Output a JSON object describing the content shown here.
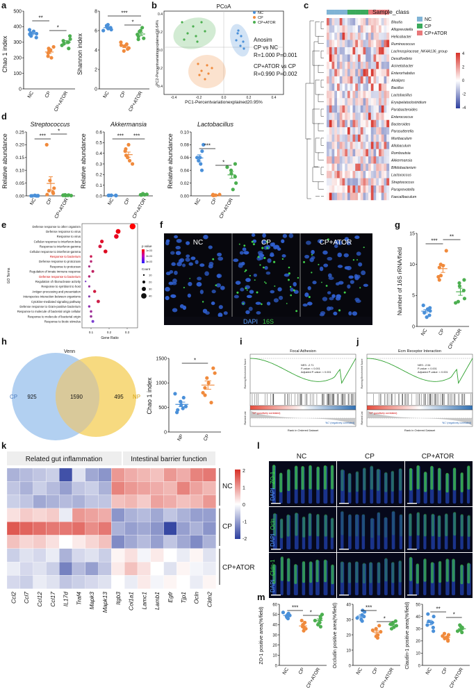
{
  "panel_letters": [
    "a",
    "b",
    "c",
    "d",
    "e",
    "f",
    "g",
    "h",
    "i",
    "j",
    "k",
    "l",
    "m"
  ],
  "groups": [
    "NC",
    "CP",
    "CP+ATOR"
  ],
  "colors": {
    "NC": "#4a90d9",
    "CP": "#f08a3c",
    "CPATOR": "#4caf50"
  },
  "a": {
    "chao1": {
      "ylabel": "Chao 1 index",
      "ticks": [
        "0",
        "100",
        "200",
        "300",
        "400",
        "500"
      ],
      "sig": [
        "**",
        "*"
      ]
    },
    "shannon": {
      "ylabel": "Shannon index",
      "ticks": [
        "0",
        "2",
        "4",
        "6",
        "8"
      ],
      "sig": [
        "***",
        "*"
      ]
    }
  },
  "b": {
    "title": "PCoA",
    "xlabel": "PC1-Percentvariationexplained20.95%",
    "ylabel": "PC2-Percentvariationexplained16.64%",
    "xticks": [
      "-0.4",
      "-0.2",
      "0.0",
      "0.2",
      "0.4"
    ],
    "yticks": [
      "0.4",
      "0.2",
      "0.0",
      "-0.2",
      "-0.4"
    ],
    "legend": [
      "NC",
      "CP",
      "CP+ATOR"
    ],
    "stats": [
      "Anosim",
      "CP vs NC",
      "R=1.000  P=0.001",
      "CP+ATOR vs CP",
      "R=0.990  P=0.002"
    ]
  },
  "c": {
    "legend_title": "Sample_class",
    "legend": [
      "NC",
      "CP",
      "CP+ATOR"
    ],
    "scale_ticks": [
      "4",
      "2",
      "0",
      "-2",
      "-4"
    ],
    "taxa": [
      "Blautia",
      "Alloprevotella",
      "Helicobacter",
      "Ruminococcus",
      "Lachnospiraceae_NK4A136_group",
      "Desulfovibrio",
      "Acinetobacter",
      "Enterorhabdus",
      "Akalipes",
      "Bacillus",
      "Lactobacillus",
      "Erysipelatoclostridium",
      "Parabacteroides",
      "Enterococcus",
      "Bacteroides",
      "Parasutterella",
      "Muribaculum",
      "Allobaculum",
      "Romboutsia",
      "Akkermansia",
      "Bifidobacterium",
      "Lactococcus",
      "Streptococcus",
      "Paraprevotella",
      "Faecalibaculum"
    ]
  },
  "d": {
    "ylabel": "Relative abundance",
    "plots": [
      {
        "title": "Streptococcus",
        "ticks": [
          "0.00",
          "0.05",
          "0.10",
          "0.15",
          "0.20",
          "0.25"
        ],
        "sig": [
          "***",
          "*"
        ]
      },
      {
        "title": "Akkermansia",
        "ticks": [
          "0.0",
          "0.1",
          "0.2",
          "0.3",
          "0.4",
          "0.5",
          "0.6"
        ],
        "sig": [
          "***",
          "***"
        ]
      },
      {
        "title": "Lactobacillus",
        "ticks": [
          "0.00",
          "0.02",
          "0.04",
          "0.06",
          "0.08",
          "0.10"
        ],
        "sig": [
          "***",
          "*"
        ]
      }
    ]
  },
  "e": {
    "ylabel": "GO Terms",
    "xlabel": "Gene Ratio",
    "xticks": [
      "0.1",
      "0.2",
      "0.3"
    ],
    "terms": [
      "Defense response to other organism",
      "Defense response to virus",
      "Response to virus",
      "Cellular response to interferon-beta",
      "Response to interferon-gamma",
      "Cellular response to interferon-gamma",
      "Response to bacterium",
      "Defense response to protozoan",
      "Response to protozoan",
      "Regulation of innate immune response",
      "Defense response to bacterium",
      "Regulation of ribonuclease activity",
      "Response to symbiont to host",
      "Antigen processing and presentation",
      "Interspecies interaction between organisms",
      "Cytokine-mediated signaling pathway",
      "Defense response to Gram-positive bacterium",
      "Response to molecule of bacterial origin cellular",
      "Response to molecule of bacterial origin",
      "Response to biotic stimulus"
    ],
    "pvalue_title": "p value",
    "pvalue_ticks": [
      "1e-03",
      "2e-03",
      "3e-03"
    ],
    "count_title": "Count",
    "count_ticks": [
      "10",
      "20",
      "30",
      "40"
    ]
  },
  "f": {
    "labels": [
      "NC",
      "CP",
      "CP+ATOR"
    ],
    "stain1": "DAPI",
    "stain2": "16S"
  },
  "g": {
    "ylabel": "Number of 16S rRNA/field",
    "ticks": [
      "0",
      "5",
      "10",
      "15"
    ],
    "sig": [
      "***",
      "**"
    ]
  },
  "h": {
    "venn_title": "Venn",
    "left_label": "CP",
    "right_label": "NP",
    "left_only": "925",
    "shared": "1590",
    "right_only": "495",
    "chao": {
      "ylabel": "Chao 1 index",
      "ticks": [
        "0",
        "500",
        "1000",
        "1500"
      ],
      "groups": [
        "NP",
        "CP"
      ],
      "sig": [
        "*"
      ]
    }
  },
  "i": {
    "title": "Focal Adhesion",
    "stats": [
      "NES: -2.71",
      "P-value: < 0.001",
      "Adjusted P-value: < 0.001"
    ],
    "top": "'CP' (positively correlated)",
    "bottom": "'NC' (negatively correlated)",
    "ylabel1": "Running Enrichment Score",
    "ylabel2": "Ranked List",
    "xlabel": "Rank in Ordered Dataset"
  },
  "j": {
    "title": "Ecm Receptor Interaction",
    "stats": [
      "NES: -2.54",
      "P-value: < 0.001",
      "Adjusted P-value: < 0.001"
    ],
    "top": "'CP' (positively correlated)",
    "bottom": "'NC' (negatively correlated)",
    "ylabel1": "Running Enrichment Score",
    "ylabel2": "Ranked List",
    "xlabel": "Rank in Ordered Dataset"
  },
  "k": {
    "header_left": "Related gut inflammation",
    "header_right": "Intestinal barrier function",
    "genes": [
      "Ccl2",
      "Ccl7",
      "Ccl12",
      "Ccl17",
      "IL17d",
      "Traf4",
      "Mapk3",
      "Mapk13",
      "Itgb3",
      "Col1a1",
      "Lamc1",
      "Lamb1",
      "Egfr",
      "Tjp1",
      "Ocln",
      "Cldn2"
    ],
    "groups": [
      "NC",
      "CP",
      "CP+ATOR"
    ],
    "scale_ticks": [
      "2",
      "1",
      "0",
      "-1",
      "-2"
    ]
  },
  "l": {
    "cols": [
      "NC",
      "CP",
      "CP+ATOR"
    ],
    "rows": [
      [
        "DAPI",
        "ZO-1"
      ],
      [
        "DAPI",
        "Ocln"
      ],
      [
        "DAPI",
        "Cldn-1"
      ]
    ]
  },
  "m": {
    "plots": [
      {
        "ylabel": "ZO-1 positive area(%/field)",
        "ticks": [
          "0",
          "10",
          "20",
          "30",
          "40",
          "50",
          "60"
        ],
        "sig": [
          "***",
          "*"
        ]
      },
      {
        "ylabel": "Occludin positive area(%/field)",
        "ticks": [
          "0",
          "10",
          "20",
          "30",
          "40"
        ],
        "sig": [
          "***",
          "*"
        ]
      },
      {
        "ylabel": "Claudin-1 positive area(%/field)",
        "ticks": [
          "0",
          "10",
          "20",
          "30",
          "40",
          "50"
        ],
        "sig": [
          "**",
          "*"
        ]
      }
    ]
  }
}
